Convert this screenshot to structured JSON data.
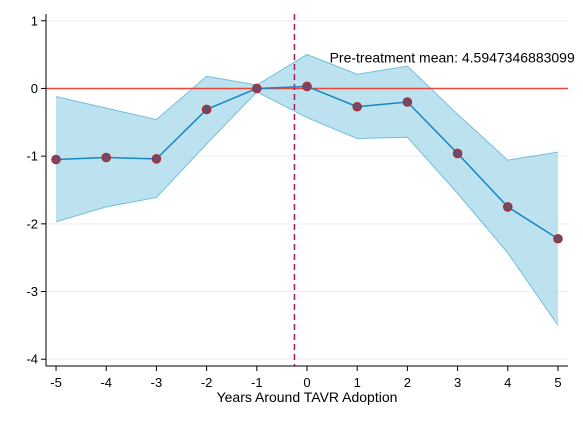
{
  "chart_data": {
    "type": "line",
    "title": "",
    "xlabel": "Years Around TAVR Adoption",
    "ylabel": "",
    "x": [
      -5,
      -4,
      -3,
      -2,
      -1,
      0,
      1,
      2,
      3,
      4,
      5
    ],
    "xlim": [
      -5.2,
      5.2
    ],
    "ylim": [
      -4.1,
      1.1
    ],
    "xticks": [
      -5,
      -4,
      -3,
      -2,
      -1,
      0,
      1,
      2,
      3,
      4,
      5
    ],
    "yticks": [
      1,
      0,
      -1,
      -2,
      -3,
      -4
    ],
    "grid": true,
    "series": [
      {
        "values": [
          -1.05,
          -1.02,
          -1.04,
          -0.31,
          0.0,
          0.03,
          -0.27,
          -0.2,
          -0.96,
          -1.75,
          -2.22
        ],
        "ci_lower": [
          -1.97,
          -1.75,
          -1.61,
          -0.82,
          -0.05,
          -0.43,
          -0.74,
          -0.72,
          -1.55,
          -2.43,
          -3.5
        ],
        "ci_upper": [
          -0.12,
          -0.29,
          -0.46,
          0.18,
          0.05,
          0.5,
          0.21,
          0.33,
          -0.38,
          -1.06,
          -0.94
        ]
      }
    ],
    "reference_line": {
      "y": 0,
      "color": "#e8473a"
    },
    "event_line": {
      "x": -0.25,
      "color": "#b0145a",
      "style": "dashed"
    },
    "annotation": "Pre-treatment mean: 4.5947346883099",
    "colors": {
      "band_fill": "#a6d8ea",
      "band_edge": "#72bfd9",
      "line": "#1a86c2",
      "marker": "#6e4a6e",
      "marker_edge": "#b02a2a"
    }
  }
}
